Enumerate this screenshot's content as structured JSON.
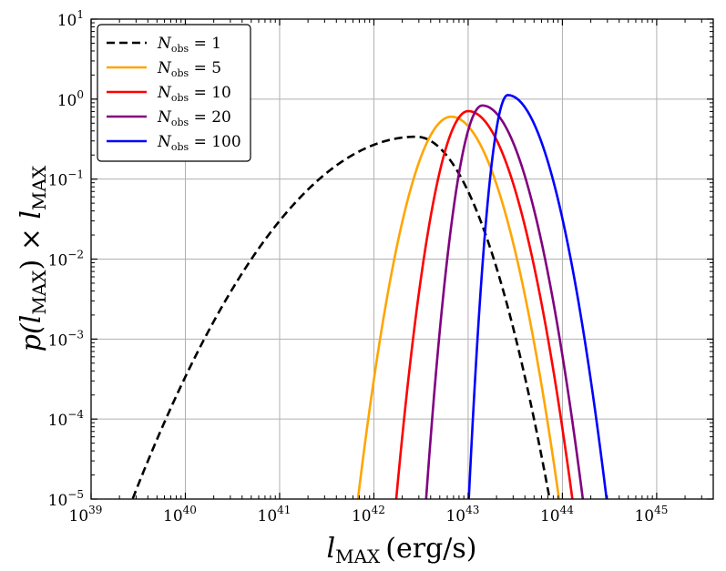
{
  "chart_data": {
    "type": "line",
    "title": "",
    "xlabel": "l_MAX (erg/s)",
    "ylabel": "p(l_MAX) × l_MAX",
    "xlabel_main": "l",
    "xlabel_sub": "MAX",
    "xlabel_unit": "(erg/s)",
    "ylabel_parts": {
      "p": "p(",
      "l": "l",
      "sub": "MAX",
      "close": ") × ",
      "l2": "l",
      "sub2": "MAX"
    },
    "x_scale": "log",
    "y_scale": "log",
    "xlim_exp": [
      39,
      45.6
    ],
    "ylim_exp": [
      -5,
      1
    ],
    "x_tick_base": "10",
    "x_tick_exponents": [
      "39",
      "40",
      "41",
      "42",
      "43",
      "44",
      "45"
    ],
    "y_tick_base": "10",
    "y_tick_exponents": [
      "−5",
      "−4",
      "−3",
      "−2",
      "−1",
      "0",
      "1"
    ],
    "grid": true,
    "legend_position": "top-left",
    "series": [
      {
        "name": "N_obs = 1",
        "label_n": "N",
        "label_sub": "obs",
        "label_val": " = 1",
        "color": "#000000",
        "dashed": true,
        "peak_log10_lmax": 42.45,
        "peak_log10_y": -0.47,
        "sigma_left": 1.0,
        "sigma_right": 0.47
      },
      {
        "name": "N_obs = 5",
        "label_n": "N",
        "label_sub": "obs",
        "label_val": " = 5",
        "color": "#ffa500",
        "dashed": false,
        "peak_log10_lmax": 42.82,
        "peak_log10_y": -0.22,
        "sigma_left": 0.32,
        "sigma_right": 0.37
      },
      {
        "name": "N_obs = 10",
        "label_n": "N",
        "label_sub": "obs",
        "label_val": " = 10",
        "color": "#ff0000",
        "dashed": false,
        "peak_log10_lmax": 43.0,
        "peak_log10_y": -0.15,
        "sigma_left": 0.245,
        "sigma_right": 0.355
      },
      {
        "name": "N_obs = 20",
        "label_n": "N",
        "label_sub": "obs",
        "label_val": " = 20",
        "color": "#800080",
        "dashed": false,
        "peak_log10_lmax": 43.15,
        "peak_log10_y": -0.08,
        "sigma_left": 0.19,
        "sigma_right": 0.34
      },
      {
        "name": "N_obs = 100",
        "label_n": "N",
        "label_sub": "obs",
        "label_val": " = 100",
        "color": "#0000ff",
        "dashed": false,
        "peak_log10_lmax": 43.42,
        "peak_log10_y": 0.05,
        "sigma_left": 0.13,
        "sigma_right": 0.33
      }
    ]
  }
}
